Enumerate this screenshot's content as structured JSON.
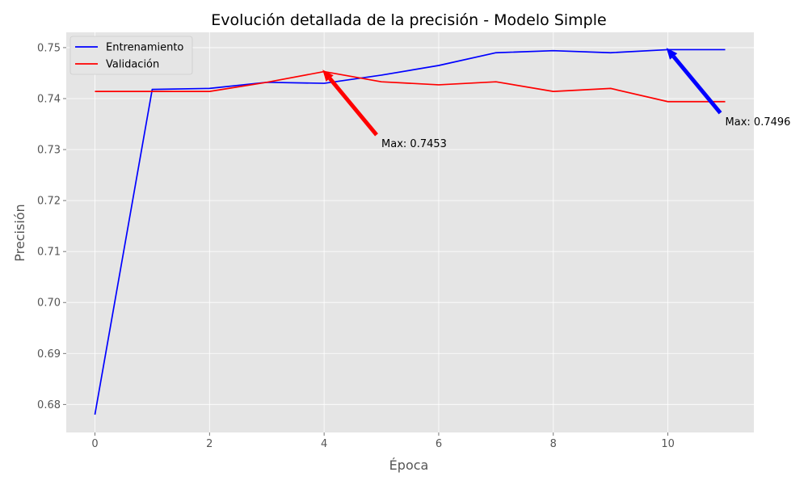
{
  "chart_data": {
    "type": "line",
    "title": "Evolución detallada de la precisión - Modelo Simple",
    "xlabel": "Época",
    "ylabel": "Precisión",
    "xlim": [
      -0.5,
      11.5
    ],
    "ylim": [
      0.6745,
      0.753
    ],
    "grid": true,
    "legend_position": "top-left",
    "x_ticks": [
      0,
      2,
      4,
      6,
      8,
      10
    ],
    "y_ticks": [
      0.68,
      0.69,
      0.7,
      0.71,
      0.72,
      0.73,
      0.74,
      0.75
    ],
    "x_tick_labels": [
      "0",
      "2",
      "4",
      "6",
      "8",
      "10"
    ],
    "y_tick_labels": [
      "0.68",
      "0.69",
      "0.70",
      "0.71",
      "0.72",
      "0.73",
      "0.74",
      "0.75"
    ],
    "x": [
      0,
      1,
      2,
      3,
      4,
      5,
      6,
      7,
      8,
      9,
      10,
      11
    ],
    "series": [
      {
        "name": "Entrenamiento",
        "color": "#0000ff",
        "values": [
          0.678,
          0.7418,
          0.742,
          0.7432,
          0.743,
          0.7446,
          0.7465,
          0.749,
          0.7494,
          0.749,
          0.7496,
          0.7496
        ]
      },
      {
        "name": "Validación",
        "color": "#ff0000",
        "values": [
          0.7414,
          0.7414,
          0.7414,
          0.7432,
          0.7453,
          0.7433,
          0.7427,
          0.7433,
          0.7414,
          0.742,
          0.7394,
          0.7394
        ]
      }
    ],
    "annotations": [
      {
        "text": "Max: 0.7453",
        "color": "#ff0000",
        "point": [
          4,
          0.7453
        ],
        "text_at": [
          5,
          0.7305
        ]
      },
      {
        "text": "Max: 0.7496",
        "color": "#0000ff",
        "point": [
          10,
          0.7496
        ],
        "text_at": [
          11,
          0.7348
        ]
      }
    ],
    "colors": {
      "plot_background": "#e5e5e5",
      "grid": "#ffffff",
      "text": "#555555"
    }
  }
}
